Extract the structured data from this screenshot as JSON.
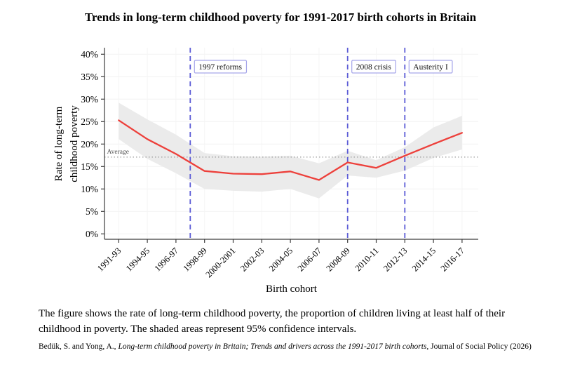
{
  "title": "Trends in long-term childhood poverty for 1991-2017 birth cohorts in Britain",
  "chart_data": {
    "type": "line",
    "title": "Trends in long-term childhood poverty for 1991-2017 birth cohorts in Britain",
    "categories": [
      "1991-93",
      "1994-95",
      "1996-97",
      "1998-99",
      "2000-2001",
      "2002-03",
      "2004-05",
      "2006-07",
      "2008-09",
      "2010-11",
      "2012-13",
      "2014-15",
      "2016-17"
    ],
    "series": [
      {
        "name": "Rate of long-term childhood poverty",
        "values": [
          25.3,
          21.1,
          17.8,
          14.0,
          13.4,
          13.3,
          13.9,
          12.0,
          15.9,
          14.7,
          17.4,
          20.0,
          22.5
        ]
      }
    ],
    "ci_lower": [
      21.1,
      16.7,
      13.5,
      10.0,
      9.6,
      9.4,
      10.0,
      7.9,
      13.0,
      12.5,
      14.1,
      16.9,
      18.8
    ],
    "ci_upper": [
      29.2,
      25.5,
      22.1,
      18.0,
      17.3,
      17.2,
      17.4,
      15.7,
      18.5,
      16.4,
      19.3,
      23.7,
      26.3
    ],
    "ci_note": "shaded areas represent 95% confidence intervals",
    "average_line": {
      "label": "Average",
      "value": 17.1
    },
    "event_lines": [
      {
        "label": "1997 reforms",
        "x_index": 2.5
      },
      {
        "label": "2008 crisis",
        "x_index": 8
      },
      {
        "label": "Austerity I",
        "x_index": 10
      }
    ],
    "xlabel": "Birth cohort",
    "ylabel": "Rate of long-term childhood poverty",
    "ylabel_lines": [
      "Rate of long-term",
      "childhood poverty"
    ],
    "ylim": [
      0,
      40
    ],
    "ytick_step": 5,
    "ytick_suffix": "%",
    "grid": true,
    "legend_position": "none",
    "colors": {
      "line": "#ed403b",
      "band": "#ebebeb",
      "event": "#5b5bd6",
      "event_box_border": "#a6a6ea",
      "average": "#999999",
      "axis": "#3c3c3c",
      "grid": "#f2f2f2",
      "grid_v": "#f5f5f5"
    }
  },
  "caption": {
    "line1": "The figure shows the rate of long-term childhood poverty, the proportion of children living at least half of their",
    "line2": "childhood in poverty. The shaded areas represent 95% confidence intervals."
  },
  "citation": {
    "pre": "Bedük, S. and Yong, A., ",
    "italic": "Long-term childhood poverty in Britain; Trends and drivers across the 1991-2017 birth cohorts,",
    "post": " Journal of Social Policy (2026)"
  }
}
